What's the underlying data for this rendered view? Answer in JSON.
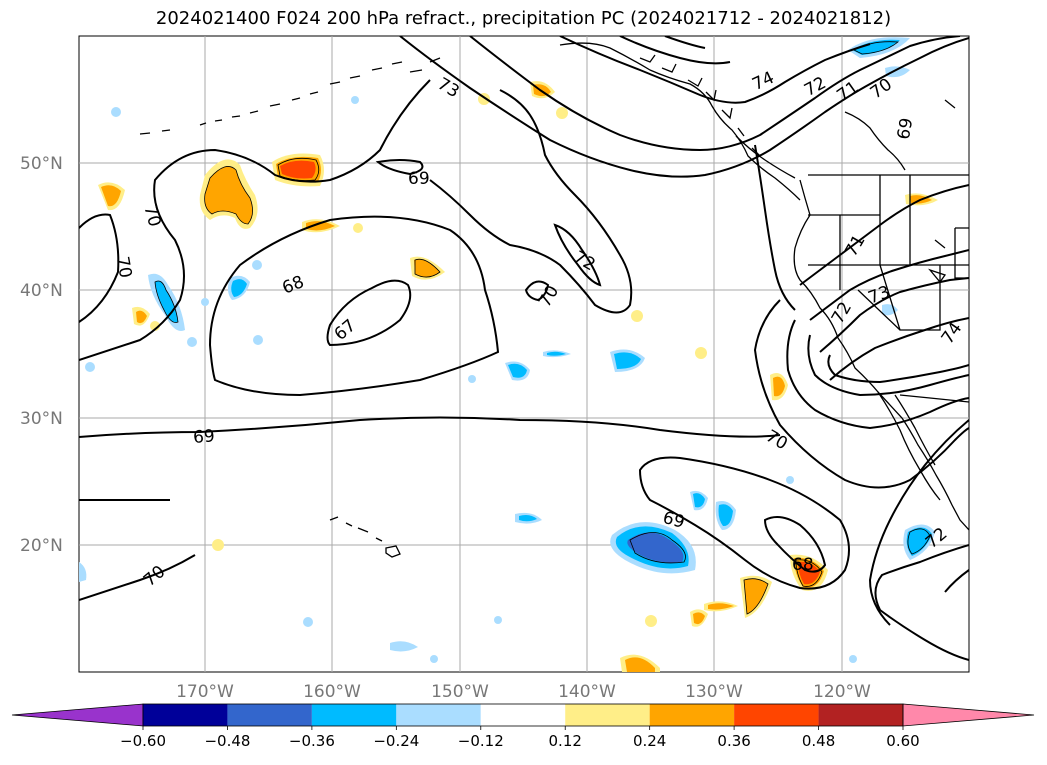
{
  "title": "2024021400 F024 200 hPa refract., precipitation PC (2024021712 - 2024021812)",
  "lat_labels": [
    "50°N",
    "40°N",
    "30°N",
    "20°N"
  ],
  "lon_labels": [
    "170°W",
    "160°W",
    "150°W",
    "140°W",
    "130°W",
    "120°W"
  ],
  "colorbar": {
    "colors": [
      "#9933cc",
      "#000099",
      "#3366cc",
      "#00bbff",
      "#aaddff",
      "#ffffff",
      "#ffee88",
      "#ffa500",
      "#ff4500",
      "#b22222",
      "#ff88aa"
    ],
    "tick_labels": [
      "−0.60",
      "−0.48",
      "−0.36",
      "−0.24",
      "−0.12",
      "0.12",
      "0.24",
      "0.36",
      "0.48",
      "0.60"
    ]
  },
  "contour_labels": [
    "73",
    "74",
    "72",
    "71",
    "70",
    "69",
    "69",
    "70",
    "70",
    "68",
    "67",
    "72",
    "70",
    "71",
    "72",
    "73",
    "74",
    "69",
    "70",
    "69",
    "68",
    "70",
    "72"
  ]
}
